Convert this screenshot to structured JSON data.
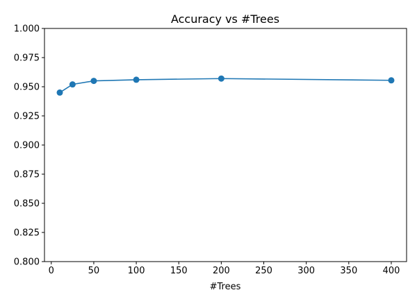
{
  "chart_data": {
    "type": "line",
    "title": "Accuracy vs #Trees",
    "xlabel": "#Trees",
    "ylabel": "",
    "x": [
      10,
      25,
      50,
      100,
      200,
      400
    ],
    "series": [
      {
        "values": [
          0.945,
          0.952,
          0.955,
          0.956,
          0.957,
          0.9555
        ],
        "color": "#1f77b4",
        "marker": "circle"
      }
    ],
    "xlim": [
      -8,
      418
    ],
    "ylim": [
      0.8,
      1.0
    ],
    "xticks": [
      0,
      50,
      100,
      150,
      200,
      250,
      300,
      350,
      400
    ],
    "xtick_labels": [
      "0",
      "50",
      "100",
      "150",
      "200",
      "250",
      "300",
      "350",
      "400"
    ],
    "yticks": [
      0.8,
      0.825,
      0.85,
      0.875,
      0.9,
      0.925,
      0.95,
      0.975,
      1.0
    ],
    "ytick_labels": [
      "0.800",
      "0.825",
      "0.850",
      "0.875",
      "0.900",
      "0.925",
      "0.950",
      "0.975",
      "1.000"
    ],
    "grid": false,
    "legend": "none"
  }
}
